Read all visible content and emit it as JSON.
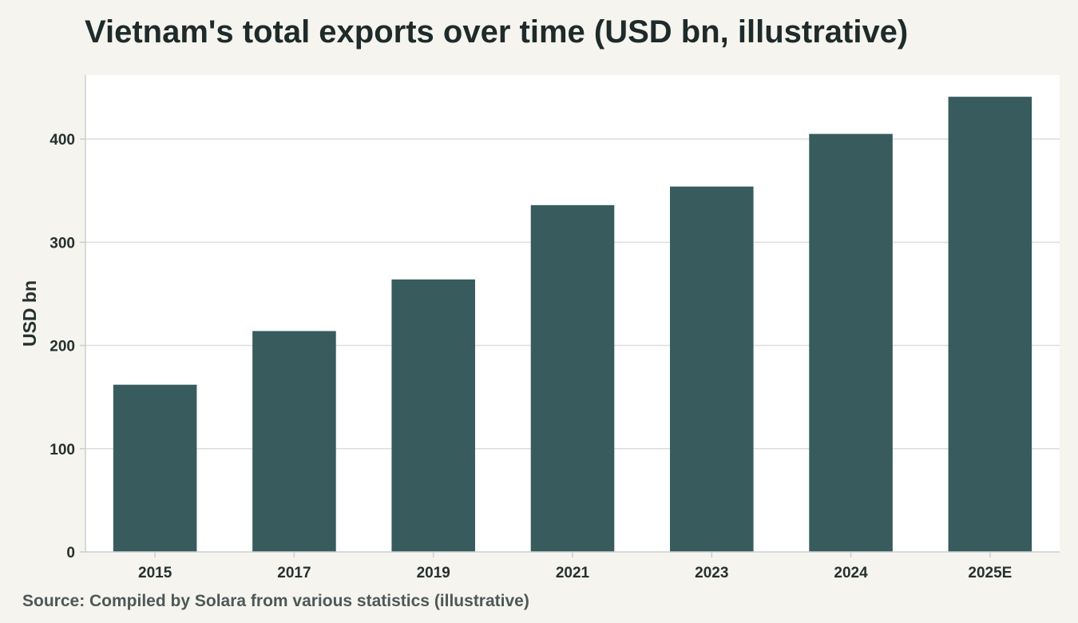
{
  "page": {
    "title": "Vietnam's total exports over time (USD bn, illustrative)",
    "source": "Source: Compiled by Solara from various statistics (illustrative)"
  },
  "colors": {
    "background": "#f5f4ef",
    "plot_background": "#ffffff",
    "bar": "#385c5e",
    "grid": "#d9dfdf",
    "axis": "#c9d0d0"
  },
  "chart_data": {
    "type": "bar",
    "title": "Vietnam's total exports over time (USD bn, illustrative)",
    "xlabel": "",
    "ylabel": "USD bn",
    "categories": [
      "2015",
      "2017",
      "2019",
      "2021",
      "2023",
      "2024",
      "2025E"
    ],
    "values": [
      162,
      214,
      264,
      336,
      354,
      405,
      441
    ],
    "ylim": [
      0,
      462
    ],
    "yticks": [
      0,
      100,
      200,
      300,
      400
    ],
    "grid": true,
    "legend": "none"
  }
}
